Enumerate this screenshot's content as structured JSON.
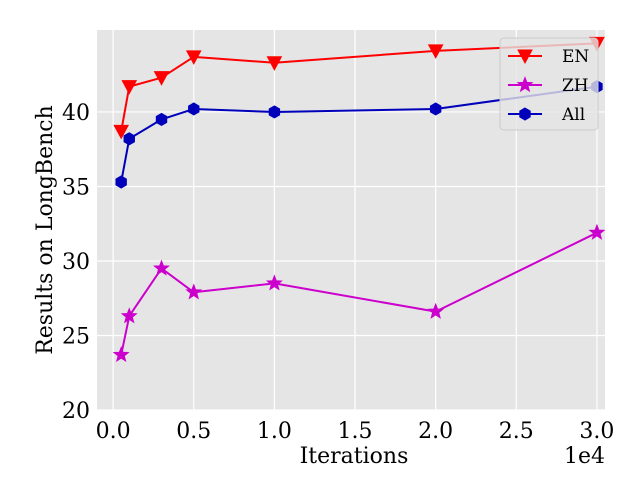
{
  "chart_data": {
    "type": "line",
    "title": "",
    "xlabel": "Iterations",
    "ylabel": "Results on LongBench",
    "x_offset_label": "1e4",
    "xlim": [
      -0.1,
      3.05
    ],
    "ylim": [
      20,
      45.5
    ],
    "xticks": [
      0.0,
      0.5,
      1.0,
      1.5,
      2.0,
      2.5,
      3.0
    ],
    "xtick_labels": [
      "0.0",
      "0.5",
      "1.0",
      "1.5",
      "2.0",
      "2.5",
      "3.0"
    ],
    "yticks": [
      20,
      25,
      30,
      35,
      40
    ],
    "ytick_labels": [
      "20",
      "25",
      "30",
      "35",
      "40"
    ],
    "grid": true,
    "legend_position": "top-right",
    "x": [
      0.05,
      0.1,
      0.3,
      0.5,
      1.0,
      2.0,
      3.0
    ],
    "series": [
      {
        "name": "EN",
        "color": "#ff0000",
        "marker": "triangle-down",
        "values": [
          38.7,
          41.7,
          42.3,
          43.7,
          43.3,
          44.1,
          44.6
        ]
      },
      {
        "name": "ZH",
        "color": "#cc00cc",
        "marker": "star",
        "values": [
          23.7,
          26.3,
          29.5,
          27.9,
          28.5,
          26.6,
          31.9
        ]
      },
      {
        "name": "All",
        "color": "#0000bb",
        "marker": "hexagon",
        "values": [
          35.3,
          38.2,
          39.5,
          40.2,
          40.0,
          40.2,
          41.7
        ]
      }
    ]
  }
}
